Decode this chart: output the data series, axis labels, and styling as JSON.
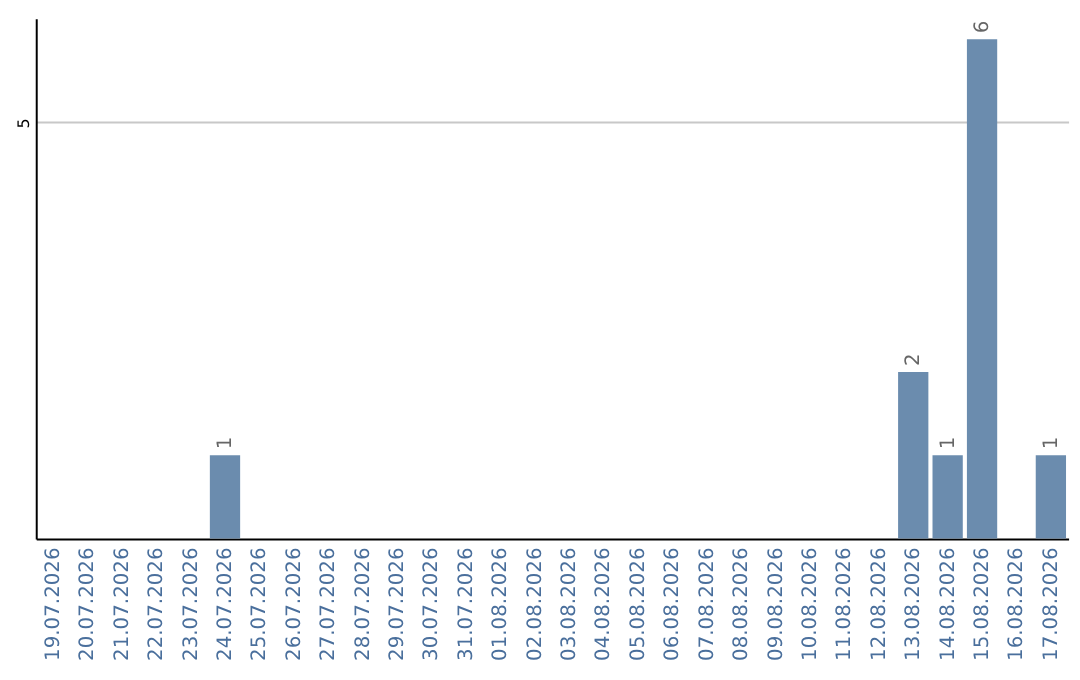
{
  "chart_data": {
    "type": "bar",
    "categories": [
      "19.07.2026",
      "20.07.2026",
      "21.07.2026",
      "22.07.2026",
      "23.07.2026",
      "24.07.2026",
      "25.07.2026",
      "26.07.2026",
      "27.07.2026",
      "28.07.2026",
      "29.07.2026",
      "30.07.2026",
      "31.07.2026",
      "01.08.2026",
      "02.08.2026",
      "03.08.2026",
      "04.08.2026",
      "05.08.2026",
      "06.08.2026",
      "07.08.2026",
      "08.08.2026",
      "09.08.2026",
      "10.08.2026",
      "11.08.2026",
      "12.08.2026",
      "13.08.2026",
      "14.08.2026",
      "15.08.2026",
      "16.08.2026",
      "17.08.2026"
    ],
    "values": [
      0,
      0,
      0,
      0,
      0,
      1,
      0,
      0,
      0,
      0,
      0,
      0,
      0,
      0,
      0,
      0,
      0,
      0,
      0,
      0,
      0,
      0,
      0,
      0,
      0,
      2,
      1,
      6,
      0,
      1
    ],
    "value_labels": [
      null,
      null,
      null,
      null,
      null,
      "1",
      null,
      null,
      null,
      null,
      null,
      null,
      null,
      null,
      null,
      null,
      null,
      null,
      null,
      null,
      null,
      null,
      null,
      null,
      null,
      "2",
      "1",
      "6",
      null,
      "1"
    ],
    "color": "#6b8cae",
    "ylim": [
      0,
      6.25
    ],
    "yticks": [
      5
    ],
    "grid": "y"
  }
}
